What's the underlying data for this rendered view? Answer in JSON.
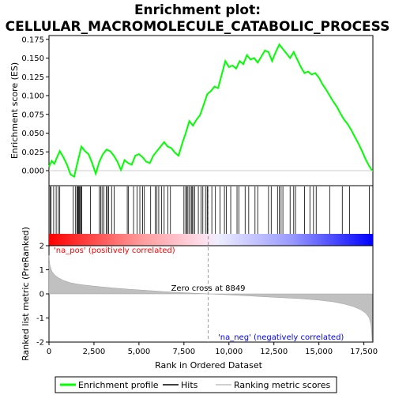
{
  "chart_data": {
    "type": "line",
    "title_line1": "Enrichment plot:",
    "title_line2": "CELLULAR_MACROMOLECULE_CATABOLIC_PROCESS",
    "es_panel": {
      "ylabel": "Enrichment score (ES)",
      "ylim": [
        -0.02,
        0.18
      ],
      "yticks": [
        0.0,
        0.025,
        0.05,
        0.075,
        0.1,
        0.125,
        0.15,
        0.175
      ],
      "ytick_labels": [
        "0.000",
        "0.025",
        "0.050",
        "0.075",
        "0.100",
        "0.125",
        "0.150",
        "0.175"
      ],
      "series": [
        {
          "name": "Enrichment profile",
          "color": "#00ff00",
          "x": [
            0,
            150,
            300,
            450,
            600,
            800,
            1000,
            1200,
            1400,
            1600,
            1800,
            2000,
            2200,
            2400,
            2600,
            2800,
            3000,
            3200,
            3400,
            3600,
            3800,
            4000,
            4200,
            4400,
            4600,
            4800,
            5000,
            5200,
            5400,
            5600,
            5800,
            6000,
            6200,
            6400,
            6600,
            6800,
            7000,
            7200,
            7400,
            7600,
            7800,
            8000,
            8200,
            8400,
            8600,
            8800,
            9000,
            9200,
            9400,
            9600,
            9800,
            10000,
            10200,
            10400,
            10600,
            10800,
            11000,
            11200,
            11400,
            11600,
            11800,
            12000,
            12200,
            12400,
            12600,
            12800,
            13000,
            13200,
            13400,
            13600,
            13800,
            14000,
            14200,
            14400,
            14600,
            14800,
            15000,
            15200,
            15400,
            15600,
            15800,
            16000,
            16200,
            16400,
            16600,
            16800,
            17000,
            17200,
            17400,
            17600,
            17800,
            17960
          ],
          "values": [
            0.005,
            0.013,
            0.009,
            0.018,
            0.026,
            0.018,
            0.008,
            -0.005,
            -0.008,
            0.012,
            0.032,
            0.026,
            0.022,
            0.01,
            -0.004,
            0.012,
            0.022,
            0.028,
            0.026,
            0.02,
            0.012,
            0.001,
            0.014,
            0.01,
            0.008,
            0.02,
            0.022,
            0.018,
            0.012,
            0.01,
            0.02,
            0.026,
            0.032,
            0.038,
            0.032,
            0.03,
            0.024,
            0.02,
            0.036,
            0.05,
            0.066,
            0.06,
            0.068,
            0.074,
            0.088,
            0.102,
            0.106,
            0.112,
            0.11,
            0.128,
            0.146,
            0.138,
            0.14,
            0.136,
            0.146,
            0.142,
            0.154,
            0.148,
            0.15,
            0.144,
            0.152,
            0.16,
            0.158,
            0.146,
            0.158,
            0.168,
            0.162,
            0.156,
            0.15,
            0.158,
            0.148,
            0.138,
            0.13,
            0.132,
            0.128,
            0.13,
            0.124,
            0.115,
            0.108,
            0.1,
            0.092,
            0.085,
            0.076,
            0.068,
            0.062,
            0.054,
            0.045,
            0.036,
            0.026,
            0.015,
            0.006,
            0.0
          ]
        }
      ]
    },
    "hits_panel": {
      "name": "Hits",
      "hit_positions": [
        60,
        120,
        260,
        400,
        520,
        600,
        1350,
        1480,
        1560,
        1600,
        1640,
        1680,
        1720,
        1780,
        1820,
        2300,
        2800,
        2880,
        2950,
        3050,
        3180,
        3250,
        3320,
        3480,
        3620,
        4350,
        4420,
        4700,
        4900,
        5050,
        5200,
        5300,
        5650,
        5900,
        6000,
        6100,
        6250,
        6400,
        6600,
        6750,
        7500,
        7600,
        7650,
        7720,
        7800,
        7900,
        7950,
        8000,
        8100,
        8300,
        8450,
        8550,
        8700,
        8790,
        8830,
        9050,
        9250,
        9500,
        9750,
        9850,
        10100,
        10450,
        10550,
        10900,
        11100,
        11450,
        11600,
        12200,
        12350,
        12700,
        12800,
        12900,
        13000,
        13400,
        13600,
        13700,
        14200,
        14500,
        14700,
        14850,
        15600,
        16300,
        16700,
        17800
      ],
      "color_bar_start": "#ff0000",
      "color_bar_end": "#0000ff"
    },
    "metric_panel": {
      "ylabel": "Ranked list metric (PreRanked)",
      "xlabel": "Rank in Ordered Dataset",
      "ylim": [
        -2,
        2
      ],
      "yticks": [
        -2,
        -1,
        0,
        1,
        2
      ],
      "ytick_labels": [
        "-2",
        "-1",
        "0",
        "1",
        "2"
      ],
      "x": [
        0,
        50,
        150,
        300,
        500,
        800,
        1200,
        1800,
        2500,
        3500,
        4500,
        5500,
        6500,
        7500,
        8849,
        10000,
        11000,
        12000,
        13000,
        14000,
        15000,
        15800,
        16400,
        16900,
        17300,
        17600,
        17800,
        17900,
        17960
      ],
      "values": [
        1.6,
        1.2,
        0.95,
        0.8,
        0.68,
        0.56,
        0.46,
        0.38,
        0.32,
        0.25,
        0.19,
        0.14,
        0.09,
        0.05,
        0.0,
        -0.04,
        -0.08,
        -0.12,
        -0.16,
        -0.2,
        -0.26,
        -0.33,
        -0.42,
        -0.52,
        -0.65,
        -0.8,
        -1.0,
        -1.3,
        -1.95
      ],
      "zero_cross_label": "Zero cross at 8849",
      "zero_cross": 8849,
      "pos_label": "'na_pos' (positively correlated)",
      "neg_label": "'na_neg' (negatively correlated)",
      "pos_color": "#ff0000",
      "neg_color": "#0000ff"
    },
    "xlim": [
      0,
      18000
    ],
    "xticks": [
      0,
      2500,
      5000,
      7500,
      10000,
      12500,
      15000,
      17500
    ],
    "xtick_labels": [
      "0",
      "2,500",
      "5,000",
      "7,500",
      "10,000",
      "12,500",
      "15,000",
      "17,500"
    ],
    "legend": {
      "placement": "bottom",
      "items": [
        {
          "label": "Enrichment profile",
          "color": "#00ff00"
        },
        {
          "label": "Hits",
          "color": "#000000"
        },
        {
          "label": "Ranking metric scores",
          "color": "#c0c0c0"
        }
      ]
    }
  }
}
